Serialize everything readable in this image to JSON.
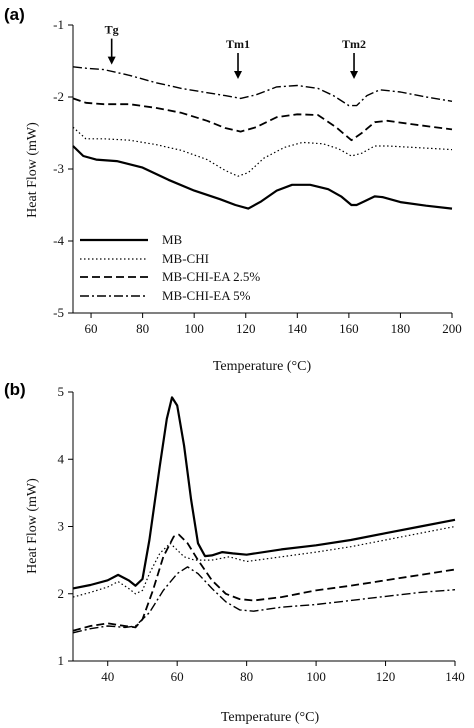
{
  "chart_data": [
    {
      "panel_label": "(a)",
      "type": "line",
      "xlabel": "Temperature (°C)",
      "ylabel": "Heat Flow (mW)",
      "xlim": [
        53,
        200
      ],
      "ylim": [
        -5,
        -1
      ],
      "xticks": [
        60,
        80,
        100,
        120,
        140,
        160,
        180,
        200
      ],
      "yticks": [
        -5,
        -4,
        -3,
        -2,
        -1
      ],
      "legend_position": "bottom-left",
      "annotations": [
        {
          "text": "Tg",
          "x": 68,
          "y": -1.55
        },
        {
          "text": "Tm1",
          "x": 117,
          "y": -1.75
        },
        {
          "text": "Tm2",
          "x": 162,
          "y": -1.75
        }
      ],
      "series": [
        {
          "name": "MB",
          "style": "solid",
          "points": [
            [
              53,
              -2.68
            ],
            [
              57,
              -2.82
            ],
            [
              62,
              -2.87
            ],
            [
              70,
              -2.89
            ],
            [
              80,
              -2.98
            ],
            [
              90,
              -3.15
            ],
            [
              100,
              -3.3
            ],
            [
              110,
              -3.42
            ],
            [
              116,
              -3.5
            ],
            [
              121,
              -3.55
            ],
            [
              126,
              -3.45
            ],
            [
              132,
              -3.3
            ],
            [
              138,
              -3.22
            ],
            [
              145,
              -3.22
            ],
            [
              152,
              -3.28
            ],
            [
              157,
              -3.38
            ],
            [
              161,
              -3.5
            ],
            [
              163,
              -3.5
            ],
            [
              166,
              -3.45
            ],
            [
              170,
              -3.38
            ],
            [
              173,
              -3.39
            ],
            [
              180,
              -3.46
            ],
            [
              190,
              -3.51
            ],
            [
              200,
              -3.55
            ]
          ]
        },
        {
          "name": "MB-CHI",
          "style": "dotted",
          "points": [
            [
              53,
              -2.42
            ],
            [
              58,
              -2.58
            ],
            [
              65,
              -2.58
            ],
            [
              75,
              -2.6
            ],
            [
              85,
              -2.66
            ],
            [
              95,
              -2.74
            ],
            [
              105,
              -2.87
            ],
            [
              112,
              -3.02
            ],
            [
              117,
              -3.1
            ],
            [
              121,
              -3.05
            ],
            [
              127,
              -2.85
            ],
            [
              135,
              -2.7
            ],
            [
              142,
              -2.63
            ],
            [
              150,
              -2.65
            ],
            [
              156,
              -2.72
            ],
            [
              161,
              -2.82
            ],
            [
              165,
              -2.78
            ],
            [
              170,
              -2.68
            ],
            [
              175,
              -2.68
            ],
            [
              185,
              -2.7
            ],
            [
              200,
              -2.73
            ]
          ]
        },
        {
          "name": "MB-CHI-EA 2.5%",
          "style": "dashed",
          "points": [
            [
              53,
              -2.02
            ],
            [
              58,
              -2.08
            ],
            [
              65,
              -2.1
            ],
            [
              75,
              -2.1
            ],
            [
              85,
              -2.15
            ],
            [
              95,
              -2.22
            ],
            [
              105,
              -2.33
            ],
            [
              112,
              -2.43
            ],
            [
              118,
              -2.48
            ],
            [
              124,
              -2.42
            ],
            [
              132,
              -2.28
            ],
            [
              140,
              -2.24
            ],
            [
              148,
              -2.25
            ],
            [
              155,
              -2.42
            ],
            [
              161,
              -2.6
            ],
            [
              165,
              -2.5
            ],
            [
              170,
              -2.35
            ],
            [
              175,
              -2.33
            ],
            [
              185,
              -2.38
            ],
            [
              200,
              -2.45
            ]
          ]
        },
        {
          "name": "MB-CHI-EA 5%",
          "style": "dashdot",
          "points": [
            [
              53,
              -1.58
            ],
            [
              58,
              -1.6
            ],
            [
              65,
              -1.62
            ],
            [
              75,
              -1.7
            ],
            [
              85,
              -1.8
            ],
            [
              95,
              -1.88
            ],
            [
              105,
              -1.94
            ],
            [
              112,
              -1.98
            ],
            [
              118,
              -2.02
            ],
            [
              124,
              -1.97
            ],
            [
              132,
              -1.86
            ],
            [
              140,
              -1.84
            ],
            [
              148,
              -1.88
            ],
            [
              154,
              -1.98
            ],
            [
              160,
              -2.12
            ],
            [
              163,
              -2.12
            ],
            [
              167,
              -1.98
            ],
            [
              172,
              -1.9
            ],
            [
              180,
              -1.93
            ],
            [
              190,
              -2
            ],
            [
              200,
              -2.06
            ]
          ]
        }
      ]
    },
    {
      "panel_label": "(b)",
      "type": "line",
      "xlabel": "Temperature (°C)",
      "ylabel": "Heat Flow (mW)",
      "xlim": [
        30,
        140
      ],
      "ylim": [
        1,
        5
      ],
      "xticks": [
        40,
        60,
        80,
        100,
        120,
        140
      ],
      "yticks": [
        1,
        2,
        3,
        4,
        5
      ],
      "series": [
        {
          "style": "solid",
          "points": [
            [
              30,
              2.08
            ],
            [
              35,
              2.13
            ],
            [
              40,
              2.2
            ],
            [
              43,
              2.28
            ],
            [
              46,
              2.2
            ],
            [
              48,
              2.12
            ],
            [
              50,
              2.22
            ],
            [
              52,
              2.8
            ],
            [
              55,
              3.9
            ],
            [
              57,
              4.6
            ],
            [
              58.5,
              4.92
            ],
            [
              60,
              4.8
            ],
            [
              62,
              4.2
            ],
            [
              64,
              3.4
            ],
            [
              66,
              2.75
            ],
            [
              68,
              2.56
            ],
            [
              70,
              2.57
            ],
            [
              73,
              2.62
            ],
            [
              76,
              2.6
            ],
            [
              80,
              2.58
            ],
            [
              90,
              2.66
            ],
            [
              100,
              2.72
            ],
            [
              110,
              2.8
            ],
            [
              120,
              2.9
            ],
            [
              130,
              3
            ],
            [
              140,
              3.1
            ]
          ]
        },
        {
          "style": "dotted",
          "points": [
            [
              30,
              1.95
            ],
            [
              35,
              2.02
            ],
            [
              40,
              2.1
            ],
            [
              43,
              2.18
            ],
            [
              46,
              2.08
            ],
            [
              48,
              2
            ],
            [
              50,
              2.05
            ],
            [
              52,
              2.3
            ],
            [
              55,
              2.6
            ],
            [
              58,
              2.75
            ],
            [
              60,
              2.65
            ],
            [
              62,
              2.55
            ],
            [
              65,
              2.5
            ],
            [
              70,
              2.5
            ],
            [
              75,
              2.55
            ],
            [
              80,
              2.48
            ],
            [
              90,
              2.55
            ],
            [
              100,
              2.62
            ],
            [
              110,
              2.7
            ],
            [
              120,
              2.8
            ],
            [
              130,
              2.9
            ],
            [
              140,
              3
            ]
          ]
        },
        {
          "style": "dashed",
          "points": [
            [
              30,
              1.45
            ],
            [
              35,
              1.52
            ],
            [
              40,
              1.56
            ],
            [
              45,
              1.52
            ],
            [
              48,
              1.5
            ],
            [
              50,
              1.62
            ],
            [
              53,
              2.05
            ],
            [
              56,
              2.55
            ],
            [
              59,
              2.85
            ],
            [
              60.5,
              2.88
            ],
            [
              63,
              2.75
            ],
            [
              66,
              2.5
            ],
            [
              70,
              2.2
            ],
            [
              74,
              2
            ],
            [
              78,
              1.92
            ],
            [
              82,
              1.9
            ],
            [
              90,
              1.95
            ],
            [
              100,
              2.05
            ],
            [
              110,
              2.12
            ],
            [
              120,
              2.2
            ],
            [
              130,
              2.28
            ],
            [
              140,
              2.36
            ]
          ]
        },
        {
          "style": "dashdot",
          "points": [
            [
              30,
              1.42
            ],
            [
              35,
              1.48
            ],
            [
              40,
              1.52
            ],
            [
              45,
              1.5
            ],
            [
              48,
              1.52
            ],
            [
              52,
              1.72
            ],
            [
              56,
              2.05
            ],
            [
              60,
              2.3
            ],
            [
              63,
              2.4
            ],
            [
              66,
              2.3
            ],
            [
              70,
              2.08
            ],
            [
              74,
              1.88
            ],
            [
              78,
              1.76
            ],
            [
              82,
              1.74
            ],
            [
              90,
              1.8
            ],
            [
              100,
              1.84
            ],
            [
              110,
              1.9
            ],
            [
              120,
              1.96
            ],
            [
              130,
              2.02
            ],
            [
              140,
              2.06
            ]
          ]
        }
      ]
    }
  ]
}
